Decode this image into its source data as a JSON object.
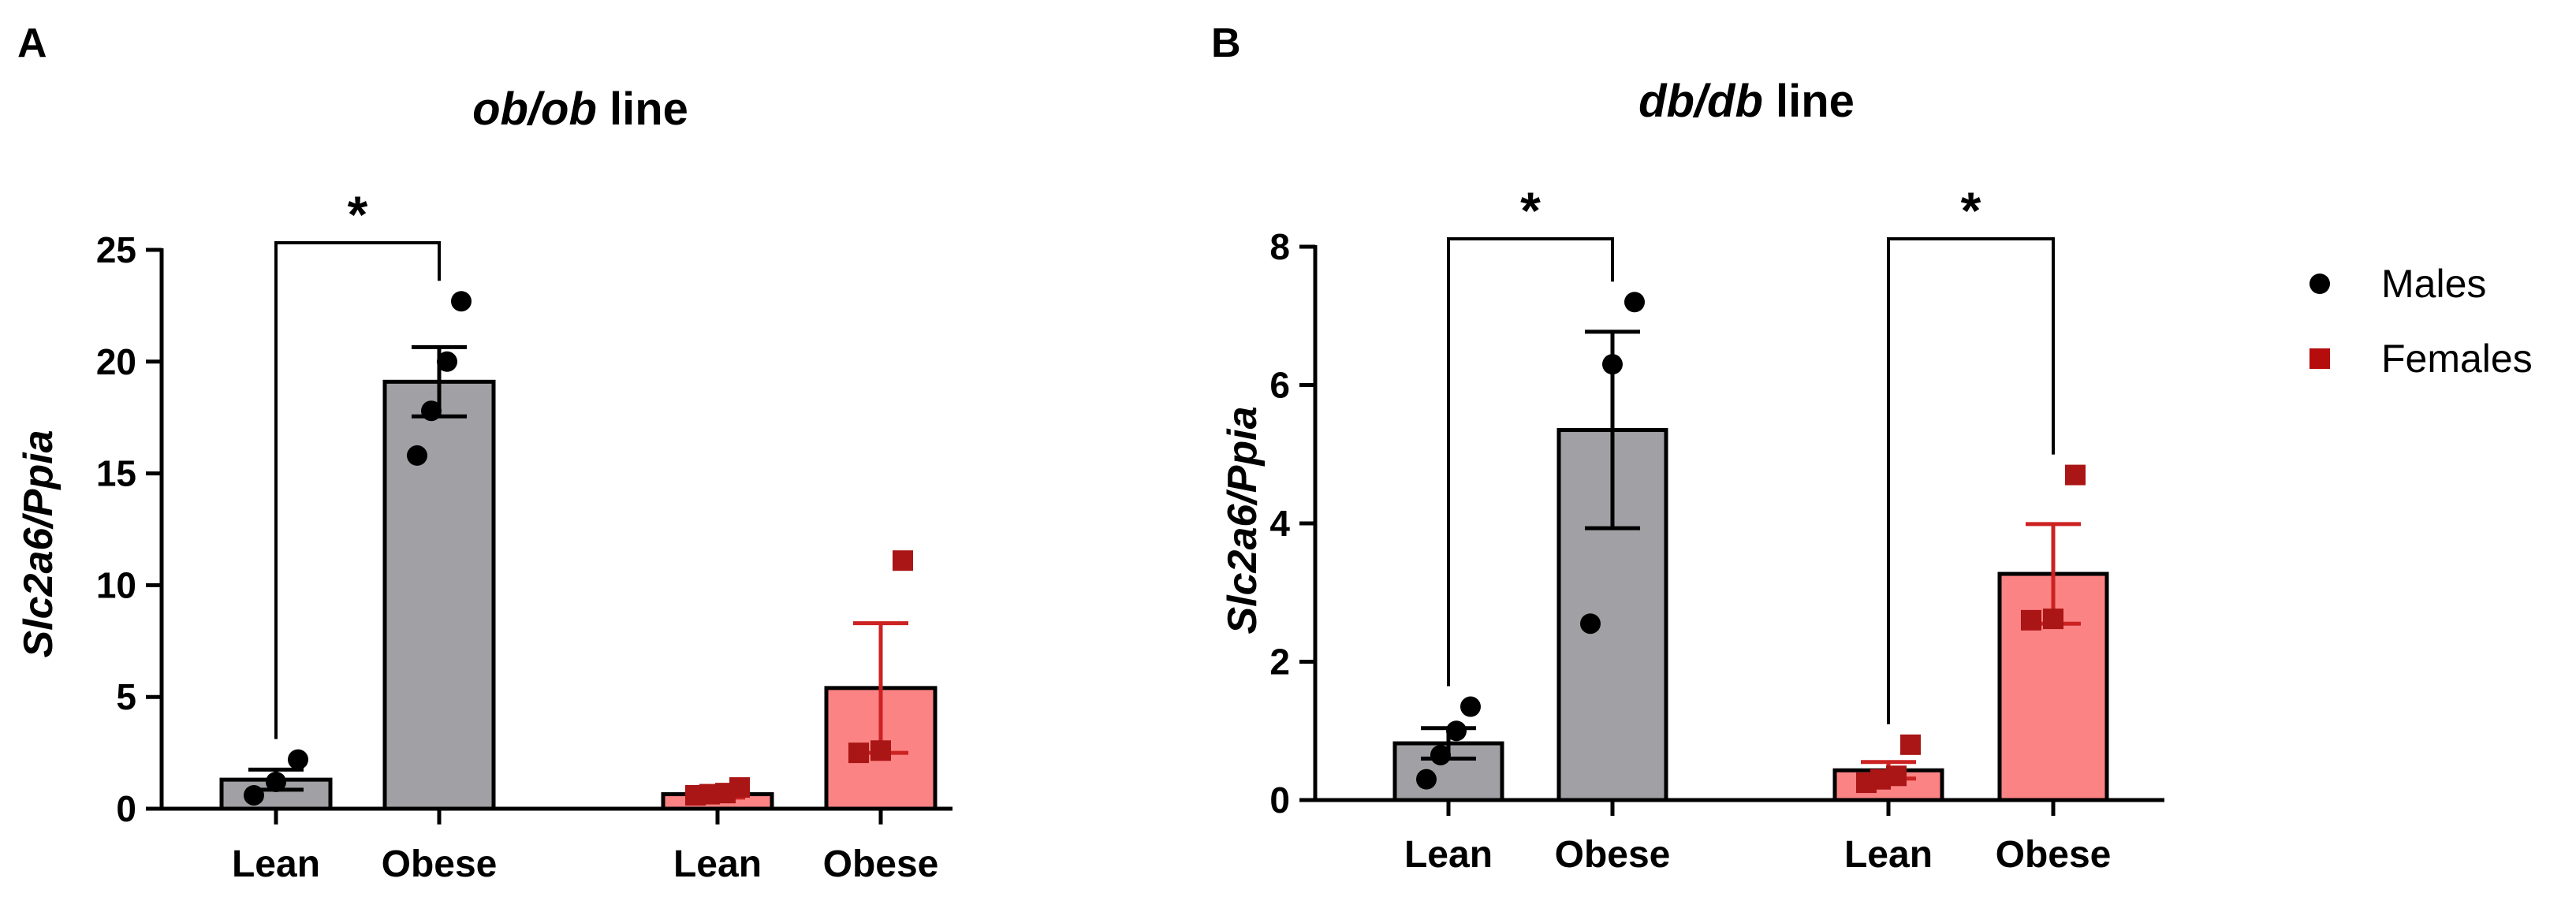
{
  "chart_data": [
    {
      "panel": "A",
      "type": "bar",
      "title": {
        "italic": "ob/ob",
        "rest": " line"
      },
      "ylabel": "Slc2a6/Ppia",
      "xlabel": "",
      "ylim": [
        0,
        25
      ],
      "yticks": [
        0,
        5,
        10,
        15,
        20,
        25
      ],
      "categories": [
        "Lean",
        "Obese",
        "Lean",
        "Obese"
      ],
      "groups": [
        {
          "category": "Lean",
          "sex": "Males",
          "mean": 1.3,
          "sem": 0.45,
          "points": [
            0.6,
            1.2,
            2.2
          ]
        },
        {
          "category": "Obese",
          "sex": "Males",
          "mean": 19.1,
          "sem": 1.55,
          "points": [
            15.8,
            17.8,
            20.0,
            22.7
          ]
        },
        {
          "category": "Lean",
          "sex": "Females",
          "mean": 0.65,
          "sem": 0.15,
          "points": [
            0.6,
            0.65,
            0.7,
            0.95
          ]
        },
        {
          "category": "Obese",
          "sex": "Females",
          "mean": 5.4,
          "sem": 2.9,
          "points": [
            2.5,
            2.6,
            11.1
          ]
        }
      ],
      "significance": [
        {
          "from": 0,
          "to": 1,
          "label": "*"
        }
      ]
    },
    {
      "panel": "B",
      "type": "bar",
      "title": {
        "italic": "db/db",
        "rest": " line"
      },
      "ylabel": "Slc2a6/Ppia",
      "xlabel": "",
      "ylim": [
        0,
        8
      ],
      "yticks": [
        0,
        2,
        4,
        6,
        8
      ],
      "categories": [
        "Lean",
        "Obese",
        "Lean",
        "Obese"
      ],
      "groups": [
        {
          "category": "Lean",
          "sex": "Males",
          "mean": 0.82,
          "sem": 0.22,
          "points": [
            0.3,
            0.65,
            1.0,
            1.35
          ]
        },
        {
          "category": "Obese",
          "sex": "Males",
          "mean": 5.35,
          "sem": 1.42,
          "points": [
            2.55,
            6.3,
            7.2
          ]
        },
        {
          "category": "Lean",
          "sex": "Females",
          "mean": 0.43,
          "sem": 0.12,
          "points": [
            0.25,
            0.3,
            0.35,
            0.8
          ]
        },
        {
          "category": "Obese",
          "sex": "Females",
          "mean": 3.27,
          "sem": 0.72,
          "points": [
            2.6,
            2.62,
            4.7
          ]
        }
      ],
      "significance": [
        {
          "from": 0,
          "to": 1,
          "label": "*"
        },
        {
          "from": 2,
          "to": 3,
          "label": "*"
        }
      ]
    }
  ],
  "legend": [
    {
      "label": "Males",
      "marker": "circle",
      "color": "#000000"
    },
    {
      "label": "Females",
      "marker": "square",
      "color": "#b50d0d"
    }
  ],
  "colors": {
    "male_bar": "#a1a1a5",
    "female_bar": "#fb8384",
    "male_marker": "#000000",
    "female_marker": "#aa1515",
    "female_error": "#cc2222",
    "axis": "#000000"
  }
}
